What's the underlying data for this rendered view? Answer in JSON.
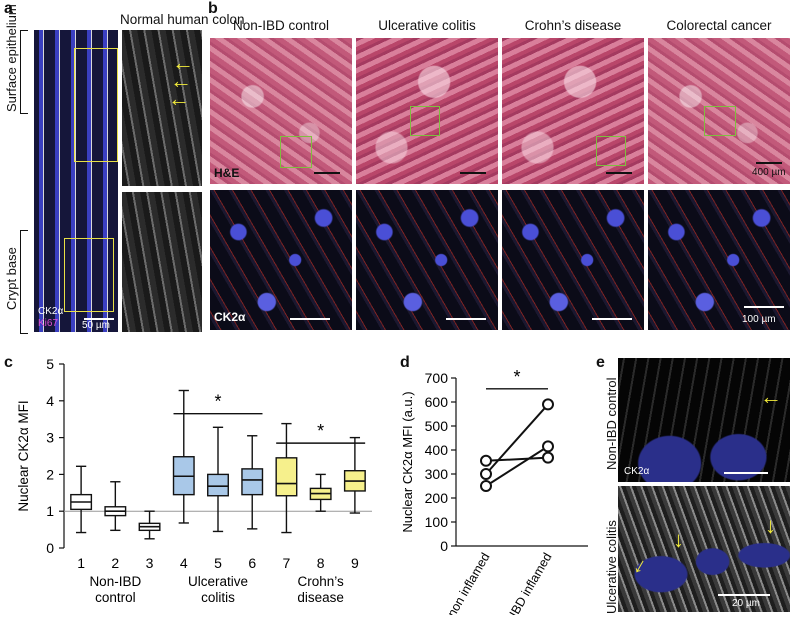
{
  "panel_labels": {
    "a": "a",
    "b": "b",
    "c": "c",
    "d": "d",
    "e": "e"
  },
  "panel_a": {
    "title": "Normal human colon",
    "side_top": "Surface epithelium",
    "side_bottom": "Crypt base",
    "stain1": "CK2α",
    "stain2": "Ki67",
    "scale": "50 µm"
  },
  "panel_b": {
    "columns": [
      "Non-IBD control",
      "Ulcerative colitis",
      "Crohn’s disease",
      "Colorectal cancer"
    ],
    "he_label": "H&E",
    "he_scale": "400 µm",
    "if_label": "CK2α",
    "if_scale": "100 µm"
  },
  "panel_d_axis_labels": [
    "IBD non inflamed",
    "IBD inflamed"
  ],
  "panel_e": {
    "top_label": "Non-IBD control",
    "bottom_label": "Ulcerative colitis",
    "stain": "CK2α",
    "scale": "20 µm"
  },
  "chart_data": [
    {
      "type": "box",
      "panel": "c",
      "ylabel": "Nuclear CK2α MFI",
      "ylim": [
        0,
        5
      ],
      "yticks": [
        0,
        1,
        2,
        3,
        4,
        5
      ],
      "reference_line": 1,
      "categories": [
        "1",
        "2",
        "3",
        "4",
        "5",
        "6",
        "7",
        "8",
        "9"
      ],
      "groups": [
        {
          "label": "Non-IBD control",
          "members": [
            "1",
            "2",
            "3"
          ],
          "color": "#ffffff"
        },
        {
          "label": "Ulcerative colitis",
          "members": [
            "4",
            "5",
            "6"
          ],
          "color": "#a9c8e8"
        },
        {
          "label": "Crohn’s disease",
          "members": [
            "7",
            "8",
            "9"
          ],
          "color": "#f6f08c"
        }
      ],
      "boxes": [
        {
          "min": 0.42,
          "q1": 1.05,
          "median": 1.25,
          "q3": 1.45,
          "max": 2.22
        },
        {
          "min": 0.48,
          "q1": 0.88,
          "median": 1.0,
          "q3": 1.12,
          "max": 1.8
        },
        {
          "min": 0.25,
          "q1": 0.48,
          "median": 0.58,
          "q3": 0.67,
          "max": 1.0
        },
        {
          "min": 0.68,
          "q1": 1.45,
          "median": 1.95,
          "q3": 2.48,
          "max": 4.28
        },
        {
          "min": 0.45,
          "q1": 1.42,
          "median": 1.68,
          "q3": 2.0,
          "max": 3.28
        },
        {
          "min": 0.52,
          "q1": 1.45,
          "median": 1.85,
          "q3": 2.15,
          "max": 3.05
        },
        {
          "min": 0.42,
          "q1": 1.42,
          "median": 1.75,
          "q3": 2.45,
          "max": 3.38
        },
        {
          "min": 1.0,
          "q1": 1.32,
          "median": 1.48,
          "q3": 1.62,
          "max": 2.0
        },
        {
          "min": 0.95,
          "q1": 1.55,
          "median": 1.82,
          "q3": 2.1,
          "max": 3.0
        }
      ],
      "significance": [
        {
          "from": "4",
          "to": "6",
          "label": "*",
          "y": 3.65
        },
        {
          "from": "7",
          "to": "9",
          "label": "*",
          "y": 2.85
        }
      ]
    },
    {
      "type": "line",
      "panel": "d",
      "ylabel": "Nuclear CK2α MFI (a.u.)",
      "ylim": [
        0,
        700
      ],
      "yticks": [
        0,
        100,
        200,
        300,
        400,
        500,
        600,
        700
      ],
      "categories": [
        "IBD non inflamed",
        "IBD inflamed"
      ],
      "pairs": [
        [
          250,
          415
        ],
        [
          300,
          590
        ],
        [
          355,
          368
        ]
      ],
      "significance": {
        "label": "*",
        "y": 655
      }
    }
  ]
}
